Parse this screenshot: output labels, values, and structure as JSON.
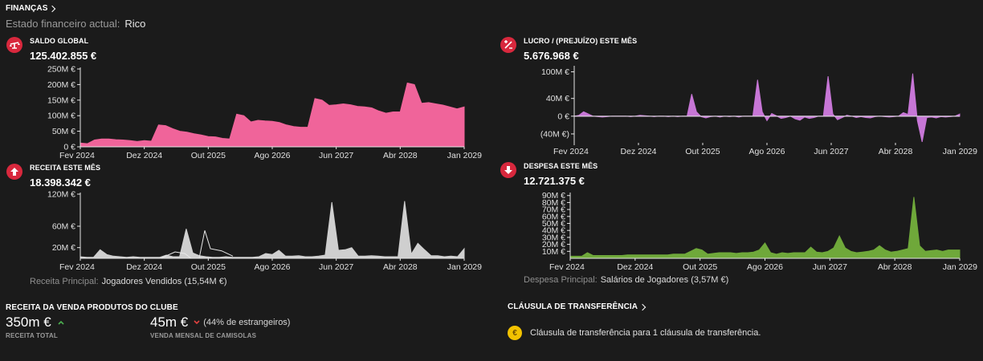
{
  "header": {
    "title": "FINANÇAS",
    "status_label": "Estado financeiro actual:",
    "status_value": "Rico"
  },
  "colors": {
    "pink": "#f0649a",
    "gray": "#cfcfcf",
    "purple": "#c776d6",
    "green": "#6fa83a",
    "badge_red": "#d8283d",
    "coin": "#f2c200"
  },
  "panels": {
    "saldo": {
      "title": "SALDO GLOBAL",
      "value": "125.402.855 €",
      "icon": "scale-icon"
    },
    "receita": {
      "title": "RECEITA ESTE MÊS",
      "value": "18.398.342 €",
      "icon": "arrow-up-icon",
      "footer_label": "Receita Principal:",
      "footer_value": "Jogadores Vendidos (15,54M €)"
    },
    "lucro": {
      "title": "LUCRO / (PREJUÍZO) ESTE MÊS",
      "value": "5.676.968 €",
      "icon": "profit-loss-icon"
    },
    "despesa": {
      "title": "DESPESA ESTE MÊS",
      "value": "12.721.375 €",
      "icon": "arrow-down-icon",
      "footer_label": "Despesa Principal:",
      "footer_value": "Salários de Jogadores (3,57M €)"
    }
  },
  "merch": {
    "title": "RECEITA DA VENDA PRODUTOS DO CLUBE",
    "total_value": "350m €",
    "total_label": "RECEITA TOTAL",
    "total_trend": "up",
    "shirt_value": "45m €",
    "shirt_note": "(44% de estrangeiros)",
    "shirt_label": "VENDA MENSAL DE CAMISOLAS",
    "shirt_trend": "down"
  },
  "clause": {
    "title": "CLÁUSULA DE TRANSFERÊNCIA",
    "text": "Cláusula de transferência para 1 cláusula de transferência.",
    "icon": "euro-coin-icon"
  },
  "chart_data": [
    {
      "id": "saldo",
      "type": "area",
      "x_ticks": [
        "Fev 2024",
        "Dez 2024",
        "Out 2025",
        "Ago 2026",
        "Jun 2027",
        "Abr 2028",
        "Jan 2029"
      ],
      "y_ticks": [
        {
          "v": 0,
          "label": "0 €"
        },
        {
          "v": 50,
          "label": "50M €"
        },
        {
          "v": 100,
          "label": "100M €"
        },
        {
          "v": 150,
          "label": "150M €"
        },
        {
          "v": 200,
          "label": "200M €"
        },
        {
          "v": 250,
          "label": "250M €"
        }
      ],
      "ylim": [
        0,
        250
      ],
      "unit": "M €",
      "values": [
        12,
        10,
        22,
        25,
        25,
        23,
        22,
        20,
        17,
        20,
        18,
        70,
        68,
        58,
        50,
        47,
        42,
        38,
        33,
        32,
        27,
        25,
        105,
        100,
        80,
        85,
        83,
        82,
        78,
        70,
        65,
        63,
        63,
        155,
        150,
        133,
        135,
        138,
        135,
        130,
        128,
        125,
        115,
        108,
        112,
        112,
        205,
        200,
        140,
        142,
        138,
        134,
        128,
        122,
        128
      ]
    },
    {
      "id": "receita",
      "type": "area",
      "x_ticks": [
        "Fev 2024",
        "Dez 2024",
        "Out 2025",
        "Ago 2026",
        "Jun 2027",
        "Abr 2028",
        "Jan 2029"
      ],
      "y_ticks": [
        {
          "v": 20,
          "label": "20M €"
        },
        {
          "v": 60,
          "label": "60M €"
        },
        {
          "v": 120,
          "label": "120M €"
        }
      ],
      "ylim": [
        0,
        120
      ],
      "unit": "M €",
      "values": [
        3,
        2,
        2,
        16,
        7,
        4,
        3,
        2,
        3,
        2,
        2,
        2,
        2,
        6,
        3,
        3,
        55,
        10,
        5,
        3,
        2,
        2,
        3,
        2,
        2,
        2,
        2,
        3,
        9,
        7,
        15,
        4,
        4,
        5,
        3,
        3,
        4,
        6,
        105,
        15,
        16,
        20,
        4,
        4,
        5,
        4,
        3,
        3,
        3,
        107,
        8,
        28,
        16,
        5,
        5,
        3,
        4,
        3,
        18
      ],
      "note": "Outlined spikes near Dez 2024 show a lighter secondary series"
    },
    {
      "id": "lucro",
      "type": "area",
      "x_ticks": [
        "Fev 2024",
        "Dez 2024",
        "Out 2025",
        "Ago 2026",
        "Jun 2027",
        "Abr 2028",
        "Jan 2029"
      ],
      "y_ticks": [
        {
          "v": 100,
          "label": "100M €"
        },
        {
          "v": 40,
          "label": "40M €"
        },
        {
          "v": 0,
          "label": "0 €"
        },
        {
          "v": -40,
          "label": "(40M €)"
        }
      ],
      "ylim": [
        -60,
        110
      ],
      "unit": "M €",
      "values": [
        0,
        2,
        10,
        5,
        0,
        -1,
        -2,
        -1,
        0,
        0,
        0,
        0,
        -1,
        0,
        2,
        1,
        0,
        -1,
        0,
        0,
        -1,
        0,
        -1,
        0,
        0,
        50,
        10,
        -1,
        -4,
        -1,
        0,
        -2,
        0,
        -1,
        0,
        -2,
        0,
        0,
        0,
        82,
        10,
        -10,
        6,
        1,
        -5,
        -3,
        0,
        -6,
        -9,
        -2,
        -5,
        -3,
        0,
        0,
        90,
        5,
        -8,
        -3,
        2,
        0,
        -3,
        -1,
        -3,
        -4,
        -1,
        0,
        -1,
        -2,
        -1,
        0,
        8,
        4,
        96,
        -10,
        -58,
        -3,
        -2,
        -4,
        -1,
        -2,
        -1,
        0,
        5
      ],
      "note": "Additional purple spikes/dips interspersed"
    },
    {
      "id": "despesa",
      "type": "area",
      "x_ticks": [
        "Fev 2024",
        "Dez 2024",
        "Out 2025",
        "Ago 2026",
        "Jun 2027",
        "Abr 2028",
        "Jan 2029"
      ],
      "y_ticks": [
        {
          "v": 10,
          "label": "10M €"
        },
        {
          "v": 20,
          "label": "20M €"
        },
        {
          "v": 30,
          "label": "30M €"
        },
        {
          "v": 40,
          "label": "40M €"
        },
        {
          "v": 50,
          "label": "50M €"
        },
        {
          "v": 60,
          "label": "60M €"
        },
        {
          "v": 70,
          "label": "70M €"
        },
        {
          "v": 80,
          "label": "80M €"
        },
        {
          "v": 90,
          "label": "90M €"
        }
      ],
      "ylim": [
        0,
        92
      ],
      "unit": "M €",
      "values": [
        3,
        3,
        3,
        8,
        4,
        4,
        4,
        4,
        4,
        4,
        5,
        5,
        5,
        5,
        5,
        5,
        5,
        5,
        6,
        6,
        6,
        10,
        14,
        12,
        6,
        7,
        8,
        8,
        8,
        7,
        8,
        8,
        9,
        12,
        22,
        8,
        6,
        8,
        7,
        8,
        8,
        8,
        16,
        9,
        8,
        10,
        15,
        32,
        15,
        10,
        8,
        9,
        10,
        12,
        18,
        12,
        9,
        10,
        12,
        14,
        88,
        18,
        10,
        11,
        12,
        10,
        12,
        12,
        12
      ]
    }
  ]
}
